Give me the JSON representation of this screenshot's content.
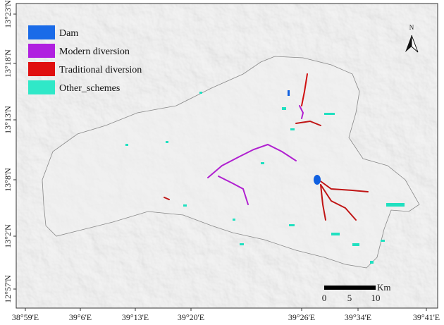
{
  "legend": [
    "Dam",
    "Modern diversion",
    "Traditional diversion",
    "Other_schemes"
  ],
  "north_arrow": "N",
  "scale_bar": {
    "unit": "Km",
    "labels": [
      "0",
      "5",
      "10"
    ]
  },
  "longitude_labels": [
    "38°59'E",
    "39°6'E",
    "39°13'E",
    "39°20'E",
    "39°26'E",
    "39°34'E",
    "39°41'E"
  ],
  "latitude_labels": [
    "13°23'N",
    "13°18'N",
    "13°13'N",
    "13°8'N",
    "13°2'N",
    "12°57'N"
  ]
}
